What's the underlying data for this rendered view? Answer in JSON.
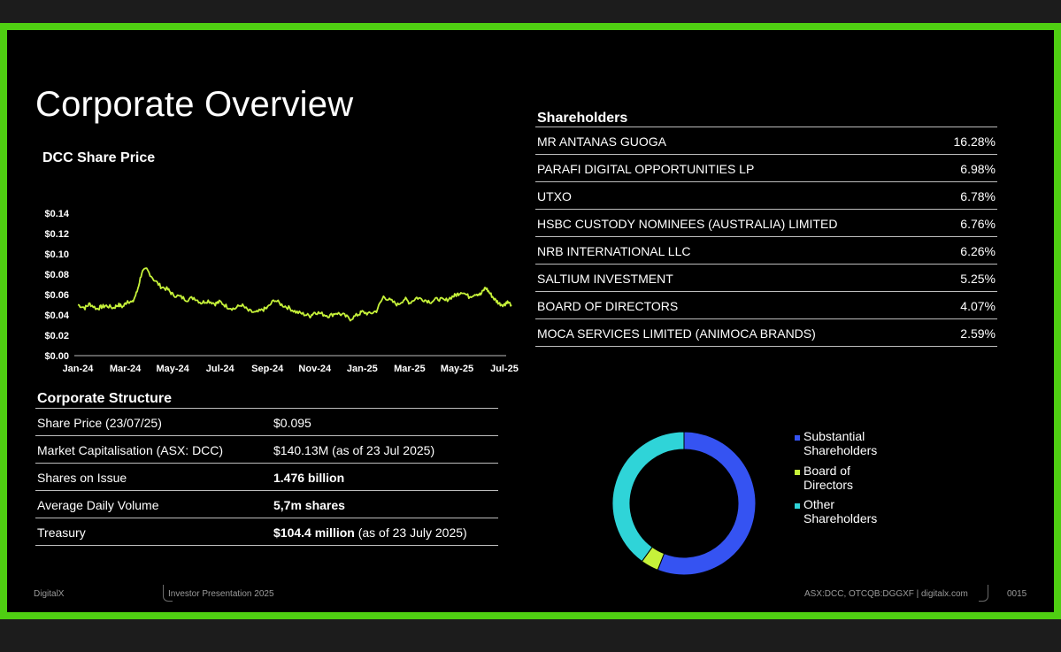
{
  "slide": {
    "title": "Corporate Overview",
    "chart_title": "DCC Share Price"
  },
  "chart_data": {
    "type": "line",
    "title": "DCC Share Price",
    "ylim": [
      0,
      0.14
    ],
    "yticks": [
      "$0.14",
      "$0.12",
      "$0.10",
      "$0.08",
      "$0.06",
      "$0.04",
      "$0.02",
      "$0.00"
    ],
    "ytick_values": [
      0.14,
      0.12,
      0.1,
      0.08,
      0.06,
      0.04,
      0.02,
      0.0
    ],
    "xticks": [
      "Jan-24",
      "Mar-24",
      "May-24",
      "Jul-24",
      "Sep-24",
      "Nov-24",
      "Jan-25",
      "Mar-25",
      "May-25",
      "Jul-25"
    ],
    "color": "#c6f23a",
    "series": [
      {
        "x": [
          0.0,
          0.3,
          0.5,
          0.8,
          1.0,
          1.2,
          1.5,
          1.7,
          1.9,
          2.1,
          2.3,
          2.5,
          2.7,
          2.9,
          3.2,
          3.5,
          3.8,
          4.0,
          4.3,
          4.6,
          4.9,
          5.2,
          5.5,
          5.8,
          6.0,
          6.3,
          6.6,
          6.9,
          7.2,
          7.5,
          7.8,
          8.0,
          8.3,
          8.6,
          8.9,
          9.2,
          9.5,
          9.8,
          10.0,
          10.3,
          10.6,
          10.9,
          11.2,
          11.5,
          11.8,
          12.0,
          12.3,
          12.6,
          12.9,
          13.2,
          13.5,
          13.8,
          14.0,
          14.3,
          14.6,
          14.9,
          15.2,
          15.5,
          15.8,
          16.0,
          16.2,
          16.5,
          16.8,
          17.0,
          17.2,
          17.4,
          17.6,
          17.8,
          18.0,
          18.1,
          18.3
        ],
        "y": [
          0.05,
          0.047,
          0.051,
          0.046,
          0.048,
          0.049,
          0.047,
          0.05,
          0.048,
          0.054,
          0.052,
          0.063,
          0.082,
          0.085,
          0.075,
          0.068,
          0.065,
          0.06,
          0.058,
          0.055,
          0.057,
          0.052,
          0.054,
          0.051,
          0.053,
          0.048,
          0.046,
          0.05,
          0.044,
          0.042,
          0.045,
          0.047,
          0.055,
          0.05,
          0.047,
          0.043,
          0.041,
          0.039,
          0.043,
          0.041,
          0.039,
          0.042,
          0.04,
          0.036,
          0.04,
          0.043,
          0.041,
          0.044,
          0.058,
          0.054,
          0.05,
          0.056,
          0.052,
          0.057,
          0.055,
          0.053,
          0.056,
          0.054,
          0.058,
          0.06,
          0.063,
          0.058,
          0.061,
          0.06,
          0.067,
          0.061,
          0.055,
          0.051,
          0.05,
          0.053,
          0.05
        ]
      }
    ],
    "x_tick_positions": [
      0,
      2,
      4,
      6,
      8,
      10,
      12,
      14,
      16,
      18
    ]
  },
  "structure": {
    "title": "Corporate Structure",
    "rows": [
      {
        "label": "Share Price (23/07/25)",
        "value": "$0.095",
        "bold": "",
        "note": ""
      },
      {
        "label": "Market Capitalisation (ASX: DCC)",
        "value": "$140.13M (as of 23 Jul 2025)",
        "bold": "",
        "note": ""
      },
      {
        "label": "Shares on Issue",
        "value": "",
        "bold": "1.476 billion",
        "note": ""
      },
      {
        "label": "Average Daily Volume",
        "value": "",
        "bold": "5,7m shares",
        "note": ""
      },
      {
        "label": "Treasury",
        "value": "",
        "bold": "$104.4 million",
        "note": " (as of 23 July  2025)"
      }
    ]
  },
  "shareholders": {
    "title": "Shareholders",
    "rows": [
      {
        "name": "MR ANTANAS GUOGA",
        "pct": "16.28%"
      },
      {
        "name": "PARAFI DIGITAL OPPORTUNITIES LP",
        "pct": "6.98%"
      },
      {
        "name": "UTXO",
        "pct": "6.78%"
      },
      {
        "name": "HSBC CUSTODY NOMINEES (AUSTRALIA) LIMITED",
        "pct": "6.76%"
      },
      {
        "name": "NRB INTERNATIONAL LLC",
        "pct": "6.26%"
      },
      {
        "name": "SALTIUM INVESTMENT",
        "pct": "5.25%"
      },
      {
        "name": "BOARD OF DIRECTORS",
        "pct": "4.07%"
      },
      {
        "name": "MOCA SERVICES LIMITED (ANIMOCA BRANDS)",
        "pct": "2.59%"
      }
    ]
  },
  "donut": {
    "segments": [
      {
        "label": "Substantial Shareholders",
        "value": 56,
        "color": "#3553f2"
      },
      {
        "label": "Board of Directors",
        "value": 4,
        "color": "#c6f23a"
      },
      {
        "label": "Other Shareholders",
        "value": 40,
        "color": "#2fd4d8"
      }
    ]
  },
  "footer": {
    "left": "DigitalX",
    "center": "Investor Presentation 2025",
    "right": "ASX:DCC, OTCQB:DGGXF | digitalx.com",
    "page": "0015"
  }
}
